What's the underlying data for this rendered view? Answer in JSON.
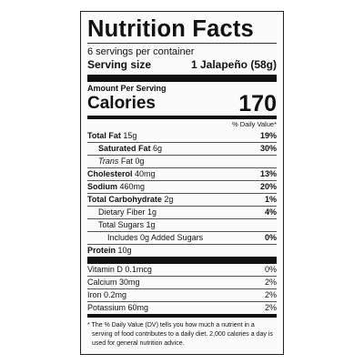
{
  "title": "Nutrition Facts",
  "servings": "6 servings per container",
  "serving_size": {
    "label": "Serving size",
    "value": "1 Jalapeño (58g)"
  },
  "amount_per_serving": "Amount Per Serving",
  "calories": {
    "label": "Calories",
    "value": "170"
  },
  "daily_value_header": "% Daily Value*",
  "nutrients": [
    {
      "name": "Total Fat",
      "amount": "15g",
      "dv": "19%"
    },
    {
      "name": "Saturated Fat",
      "amount": "6g",
      "dv": "30%"
    },
    {
      "name_italic": "Trans",
      "name": "Fat",
      "amount": "0g"
    },
    {
      "name": "Cholesterol",
      "amount": "40mg",
      "dv": "13%"
    },
    {
      "name": "Sodium",
      "amount": "460mg",
      "dv": "20%"
    },
    {
      "name": "Total Carbohydrate",
      "amount": "2g",
      "dv": "1%"
    },
    {
      "name": "Dietary Fiber",
      "amount": "1g",
      "dv": "4%"
    },
    {
      "name": "Total Sugars",
      "amount": "1g"
    },
    {
      "name": "Includes 0g Added Sugars",
      "dv": "0%"
    },
    {
      "name": "Protein",
      "amount": "10g"
    }
  ],
  "vitamins": [
    {
      "name": "Vitamin D",
      "amount": "0.1mcg",
      "dv": "0%"
    },
    {
      "name": "Calcium",
      "amount": "30mg",
      "dv": "2%"
    },
    {
      "name": "Iron",
      "amount": "0.2mg",
      "dv": "2%"
    },
    {
      "name": "Potassium",
      "amount": "60mg",
      "dv": "2%"
    }
  ],
  "footnote": "* The % Daily Value (DV) tells you how much a nutrient in a serving of food contributes to a daily diet. 2,000 calories a day is used for general nutrition advice."
}
